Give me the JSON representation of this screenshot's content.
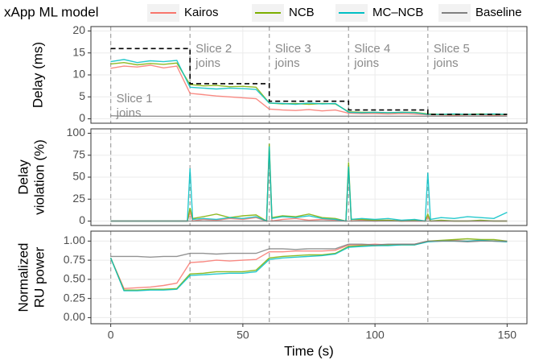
{
  "chart_data": [
    {
      "type": "line",
      "legend_title": "xApp ML model",
      "ylabel": "Delay (ms)",
      "xlim": [
        -7.5,
        157.5
      ],
      "xticks": [
        0,
        50,
        100,
        150
      ],
      "ylim": [
        -1,
        21
      ],
      "yticks": [
        0,
        5,
        10,
        15,
        20
      ],
      "grid": true,
      "vlines": [
        0,
        30,
        60,
        90,
        120
      ],
      "annotations": [
        [
          "Slice 1",
          "joins"
        ],
        [
          "Slice 2",
          "joins"
        ],
        [
          "Slice 3",
          "joins"
        ],
        [
          "Slice 4",
          "joins"
        ],
        [
          "Slice 5",
          "joins"
        ]
      ],
      "x": [
        0,
        5,
        10,
        15,
        20,
        25,
        30,
        35,
        40,
        45,
        50,
        55,
        60,
        65,
        70,
        75,
        80,
        85,
        90,
        95,
        100,
        105,
        110,
        115,
        120,
        125,
        130,
        135,
        140,
        145,
        150
      ],
      "series": [
        {
          "name": "Kairos",
          "color": "#F8766D",
          "values": [
            11.5,
            12,
            11.8,
            12.2,
            11.6,
            12,
            5.8,
            5.5,
            5.2,
            5,
            4.8,
            4.6,
            2.2,
            2,
            1.9,
            2.1,
            1.8,
            2,
            1.3,
            1.2,
            1.2,
            1.1,
            1.2,
            1.1,
            0.9,
            0.9,
            0.8,
            0.9,
            0.9,
            0.8,
            0.9
          ]
        },
        {
          "name": "NCB",
          "color": "#7CAE00",
          "values": [
            12.5,
            12.8,
            12.3,
            12.6,
            12.4,
            12.7,
            7.8,
            7.5,
            7.6,
            7.3,
            7.4,
            7.2,
            3.6,
            3.4,
            3.5,
            3.3,
            3.5,
            3.4,
            1.6,
            1.5,
            1.5,
            1.4,
            1.5,
            1.5,
            1.1,
            1,
            1,
            1,
            1.1,
            1,
            1
          ]
        },
        {
          "name": "MC–NCB",
          "color": "#00BFC4",
          "values": [
            13,
            13.5,
            12.8,
            13.2,
            13,
            13.3,
            7.2,
            7,
            6.8,
            7,
            6.9,
            6.7,
            3.6,
            3.5,
            3.3,
            3.6,
            3.4,
            3.5,
            1.5,
            1.4,
            1.5,
            1.4,
            1.5,
            1.4,
            1,
            1,
            1.1,
            1,
            1,
            1.1,
            1
          ]
        },
        {
          "name": "Baseline",
          "color": "#808080",
          "values": [
            0.7,
            0.6,
            0.6,
            0.6,
            0.6,
            0.6,
            0.6,
            0.6,
            0.6,
            0.6,
            0.6,
            0.6,
            0.6,
            0.6,
            0.6,
            0.6,
            0.6,
            0.6,
            0.6,
            0.6,
            0.6,
            0.6,
            0.6,
            0.6,
            0.6,
            0.6,
            0.6,
            0.6,
            0.6,
            0.6,
            0.6
          ]
        },
        {
          "color": "#000000",
          "dashed": true,
          "x": [
            0,
            30,
            30,
            60,
            60,
            90,
            90,
            120,
            120,
            150
          ],
          "values": [
            16,
            16,
            8,
            8,
            4,
            4,
            2,
            2,
            1,
            1
          ]
        }
      ]
    },
    {
      "type": "line",
      "ylabel": [
        "Delay",
        "violation (%)"
      ],
      "xlim": [
        -7.5,
        157.5
      ],
      "xticks": [
        0,
        50,
        100,
        150
      ],
      "ylim": [
        -5,
        105
      ],
      "yticks": [
        0,
        25,
        50,
        75,
        100
      ],
      "grid": true,
      "vlines": [
        0,
        30,
        60,
        90,
        120
      ],
      "x": [
        0,
        5,
        10,
        15,
        20,
        25,
        29,
        30,
        31,
        35,
        40,
        45,
        50,
        55,
        59,
        60,
        61,
        65,
        70,
        75,
        80,
        85,
        89,
        90,
        91,
        95,
        100,
        105,
        110,
        115,
        119,
        120,
        121,
        125,
        130,
        135,
        140,
        145,
        150
      ],
      "series": [
        {
          "color": "#F8766D",
          "values": [
            0,
            0,
            0,
            0,
            0,
            0,
            0,
            10,
            0,
            2,
            1,
            3,
            2,
            4,
            0,
            80,
            0,
            2,
            3,
            1,
            2,
            1,
            0,
            60,
            0,
            1,
            0,
            1,
            0,
            0,
            0,
            5,
            0,
            0,
            0,
            0,
            0,
            0,
            0
          ]
        },
        {
          "color": "#7CAE00",
          "values": [
            0,
            0,
            0,
            0,
            0,
            0,
            0,
            15,
            3,
            5,
            8,
            4,
            6,
            7,
            0,
            88,
            4,
            6,
            5,
            8,
            4,
            3,
            0,
            67,
            2,
            2,
            1,
            1,
            0,
            1,
            0,
            8,
            0,
            1,
            0,
            0,
            1,
            0,
            0
          ]
        },
        {
          "color": "#00BFC4",
          "values": [
            0,
            0,
            0,
            0,
            0,
            0,
            0,
            60,
            2,
            3,
            2,
            4,
            3,
            5,
            0,
            85,
            3,
            5,
            4,
            6,
            3,
            2,
            0,
            62,
            2,
            3,
            2,
            3,
            1,
            2,
            0,
            55,
            2,
            4,
            3,
            5,
            4,
            3,
            10
          ]
        },
        {
          "color": "#808080",
          "values": [
            0,
            0,
            0,
            0,
            0,
            0,
            0,
            0,
            0,
            0,
            0,
            0,
            0,
            0,
            0,
            0,
            0,
            0,
            0,
            0,
            0,
            0,
            0,
            0,
            0,
            0,
            0,
            0,
            0,
            0,
            0,
            0,
            0,
            0,
            0,
            0,
            0,
            0,
            0
          ]
        }
      ]
    },
    {
      "type": "line",
      "ylabel": [
        "Normalized",
        "RU power"
      ],
      "xlabel": "Time (s)",
      "xlim": [
        -7.5,
        157.5
      ],
      "xticks": [
        0,
        50,
        100,
        150
      ],
      "ylim": [
        -0.08,
        1.13
      ],
      "yticks": [
        {
          "value": 0,
          "label": "0.00"
        },
        {
          "value": 0.25,
          "label": "0.25"
        },
        {
          "value": 0.5,
          "label": "0.50"
        },
        {
          "value": 0.75,
          "label": "0.75"
        },
        {
          "value": 1,
          "label": "1.00"
        }
      ],
      "grid": true,
      "vlines": [
        0,
        30,
        60,
        90,
        120
      ],
      "x": [
        0,
        5,
        10,
        15,
        20,
        25,
        30,
        35,
        40,
        45,
        50,
        55,
        60,
        65,
        70,
        75,
        80,
        85,
        90,
        95,
        100,
        105,
        110,
        115,
        120,
        125,
        130,
        135,
        140,
        145,
        150
      ],
      "series": [
        {
          "color": "#F8766D",
          "values": [
            0.78,
            0.38,
            0.39,
            0.4,
            0.42,
            0.45,
            0.72,
            0.73,
            0.75,
            0.74,
            0.75,
            0.76,
            0.86,
            0.86,
            0.87,
            0.87,
            0.87,
            0.88,
            0.95,
            0.95,
            0.96,
            0.95,
            0.96,
            0.96,
            1,
            1,
            1.01,
            1,
            1.01,
            1,
            0.99
          ]
        },
        {
          "color": "#7CAE00",
          "values": [
            0.78,
            0.36,
            0.36,
            0.37,
            0.37,
            0.38,
            0.57,
            0.58,
            0.6,
            0.6,
            0.6,
            0.62,
            0.78,
            0.8,
            0.81,
            0.82,
            0.82,
            0.84,
            0.93,
            0.94,
            0.94,
            0.95,
            0.95,
            0.95,
            1,
            1.01,
            1.02,
            1.03,
            1.02,
            1.02,
            1
          ]
        },
        {
          "color": "#00BFC4",
          "values": [
            0.78,
            0.35,
            0.35,
            0.36,
            0.36,
            0.37,
            0.55,
            0.56,
            0.57,
            0.58,
            0.58,
            0.6,
            0.76,
            0.78,
            0.79,
            0.8,
            0.81,
            0.83,
            0.92,
            0.93,
            0.94,
            0.94,
            0.95,
            0.95,
            0.99,
            1,
            1,
            1,
            1.01,
            1,
            0.99
          ]
        },
        {
          "color": "#808080",
          "values": [
            0.8,
            0.8,
            0.8,
            0.79,
            0.8,
            0.8,
            0.84,
            0.84,
            0.83,
            0.84,
            0.84,
            0.84,
            0.9,
            0.9,
            0.89,
            0.9,
            0.9,
            0.9,
            0.96,
            0.96,
            0.95,
            0.96,
            0.96,
            0.96,
            1,
            1,
            1,
            0.99,
            1,
            1,
            1
          ]
        }
      ]
    }
  ]
}
